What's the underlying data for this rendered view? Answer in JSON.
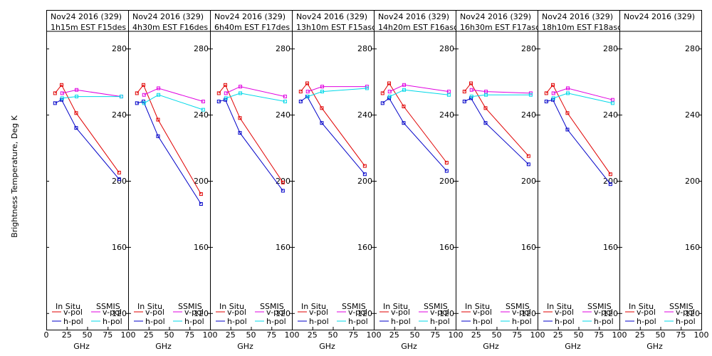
{
  "chart_data": {
    "type": "line",
    "y_axis_label": "Brightness Temperature, Deg K",
    "x_axis_label": "GHz",
    "ylim": [
      110,
      290
    ],
    "xlim": [
      0,
      100
    ],
    "y_ticks": [
      120,
      160,
      200,
      240,
      280
    ],
    "x_ticks": [
      0,
      25,
      50,
      75,
      100
    ],
    "grid": false,
    "legend": {
      "placement": "bottom",
      "insitu_title": "In Situ",
      "ssmis_title": "SSMIS",
      "vpol_label": "v-pol",
      "hpol_label": "h-pol"
    },
    "colors": {
      "insitu_v": "#e00000",
      "insitu_h": "#0000c8",
      "ssmis_v": "#e000e0",
      "ssmis_h": "#00d8e8"
    },
    "panels": [
      {
        "title1": "Nov24 2016 (329)",
        "title2": "1h15m EST F15des",
        "insitu_v": [
          [
            10.7,
            253
          ],
          [
            18.7,
            258
          ],
          [
            36.5,
            241
          ],
          [
            89,
            205
          ]
        ],
        "insitu_h": [
          [
            10.7,
            247
          ],
          [
            18.7,
            249
          ],
          [
            36.5,
            232
          ],
          [
            89,
            201
          ]
        ],
        "ssmis_v": [
          [
            19.35,
            253
          ],
          [
            37,
            255
          ],
          [
            91.65,
            251
          ]
        ],
        "ssmis_h": [
          [
            19.35,
            250
          ],
          [
            37,
            251
          ],
          [
            91.65,
            251
          ]
        ]
      },
      {
        "title1": "Nov24 2016 (329)",
        "title2": "4h30m EST F16des",
        "insitu_v": [
          [
            10.7,
            253
          ],
          [
            18.7,
            258
          ],
          [
            36.5,
            237
          ],
          [
            89,
            192
          ]
        ],
        "insitu_h": [
          [
            10.7,
            247
          ],
          [
            18.7,
            248
          ],
          [
            36.5,
            227
          ],
          [
            89,
            186
          ]
        ],
        "ssmis_v": [
          [
            19.35,
            252
          ],
          [
            37,
            256
          ],
          [
            91.65,
            248
          ]
        ],
        "ssmis_h": [
          [
            19.35,
            247
          ],
          [
            37,
            252
          ],
          [
            91.65,
            243
          ]
        ]
      },
      {
        "title1": "Nov24 2016 (329)",
        "title2": "6h40m EST F17des",
        "insitu_v": [
          [
            10.7,
            253
          ],
          [
            18.7,
            258
          ],
          [
            36.5,
            238
          ],
          [
            89,
            199
          ]
        ],
        "insitu_h": [
          [
            10.7,
            248
          ],
          [
            18.7,
            249
          ],
          [
            36.5,
            229
          ],
          [
            89,
            194
          ]
        ],
        "ssmis_v": [
          [
            19.35,
            253
          ],
          [
            37,
            257
          ],
          [
            91.65,
            251
          ]
        ],
        "ssmis_h": [
          [
            19.35,
            250
          ],
          [
            37,
            253
          ],
          [
            91.65,
            248
          ]
        ]
      },
      {
        "title1": "Nov24 2016 (329)",
        "title2": "13h10m EST F15asc",
        "insitu_v": [
          [
            10.7,
            254
          ],
          [
            18.7,
            259
          ],
          [
            36.5,
            244
          ],
          [
            89,
            209
          ]
        ],
        "insitu_h": [
          [
            10.7,
            248
          ],
          [
            18.7,
            251
          ],
          [
            36.5,
            235
          ],
          [
            89,
            204
          ]
        ],
        "ssmis_v": [
          [
            19.35,
            254
          ],
          [
            37,
            257
          ],
          [
            91.65,
            257
          ]
        ],
        "ssmis_h": [
          [
            19.35,
            251
          ],
          [
            37,
            254
          ],
          [
            91.65,
            256
          ]
        ]
      },
      {
        "title1": "Nov24 2016 (329)",
        "title2": "14h20m EST F16asc",
        "insitu_v": [
          [
            10.7,
            253
          ],
          [
            18.7,
            259
          ],
          [
            36.5,
            245
          ],
          [
            89,
            211
          ]
        ],
        "insitu_h": [
          [
            10.7,
            247
          ],
          [
            18.7,
            250
          ],
          [
            36.5,
            235
          ],
          [
            89,
            206
          ]
        ],
        "ssmis_v": [
          [
            19.35,
            254
          ],
          [
            37,
            258
          ],
          [
            91.65,
            254
          ]
        ],
        "ssmis_h": [
          [
            19.35,
            251
          ],
          [
            37,
            255
          ],
          [
            91.65,
            252
          ]
        ]
      },
      {
        "title1": "Nov24 2016 (329)",
        "title2": "16h30m EST F17asc",
        "insitu_v": [
          [
            10.7,
            254
          ],
          [
            18.7,
            259
          ],
          [
            36.5,
            244
          ],
          [
            89,
            215
          ]
        ],
        "insitu_h": [
          [
            10.7,
            248
          ],
          [
            18.7,
            250
          ],
          [
            36.5,
            235
          ],
          [
            89,
            210
          ]
        ],
        "ssmis_v": [
          [
            19.35,
            255
          ],
          [
            37,
            254
          ],
          [
            91.65,
            253
          ]
        ],
        "ssmis_h": [
          [
            19.35,
            251
          ],
          [
            37,
            252
          ],
          [
            91.65,
            252
          ]
        ]
      },
      {
        "title1": "Nov24 2016 (329)",
        "title2": "18h10m EST F18asc",
        "insitu_v": [
          [
            10.7,
            253
          ],
          [
            18.7,
            258
          ],
          [
            36.5,
            241
          ],
          [
            89,
            204
          ]
        ],
        "insitu_h": [
          [
            10.7,
            248
          ],
          [
            18.7,
            249
          ],
          [
            36.5,
            231
          ],
          [
            89,
            198
          ]
        ],
        "ssmis_v": [
          [
            19.35,
            253
          ],
          [
            37,
            256
          ],
          [
            91.65,
            249
          ]
        ],
        "ssmis_h": [
          [
            19.35,
            250
          ],
          [
            37,
            253
          ],
          [
            91.65,
            247
          ]
        ]
      },
      {
        "title1": "Nov24 2016 (329)",
        "title2": "",
        "insitu_v": [],
        "insitu_h": [],
        "ssmis_v": [],
        "ssmis_h": []
      }
    ]
  }
}
